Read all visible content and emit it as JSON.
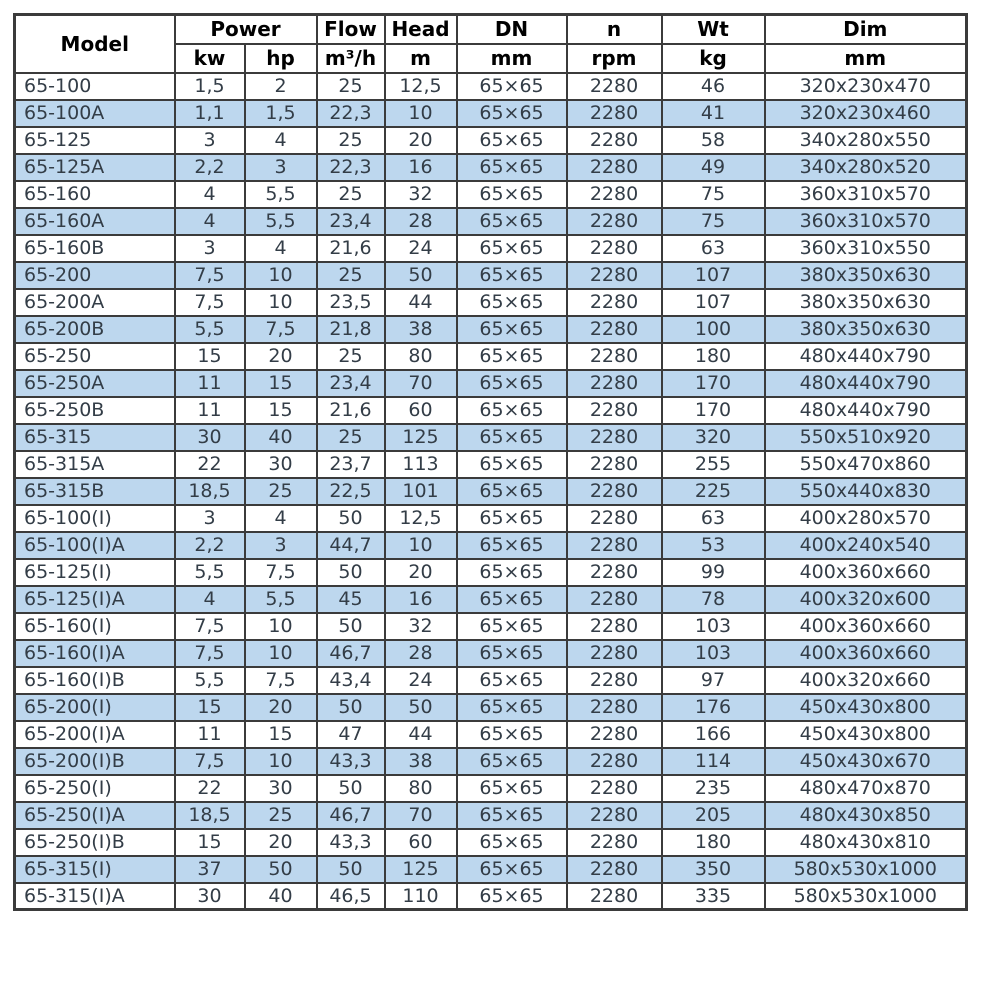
{
  "chart_data": {
    "type": "table",
    "header": {
      "model": "Model",
      "power": "Power",
      "kw": "kw",
      "hp": "hp",
      "flow": "Flow",
      "flow_unit": "m³/h",
      "head": "Head",
      "head_unit": "m",
      "dn": "DN",
      "dn_unit": "mm",
      "n": "n",
      "n_unit": "rpm",
      "wt": "Wt",
      "wt_unit": "kg",
      "dim": "Dim",
      "dim_unit": "mm"
    },
    "columns": [
      "Model",
      "Power (kw)",
      "Power (hp)",
      "Flow (m³/h)",
      "Head (m)",
      "DN (mm)",
      "n (rpm)",
      "Wt (kg)",
      "Dim (mm)"
    ],
    "rows": [
      [
        "65-100",
        "1,5",
        "2",
        "25",
        "12,5",
        "65×65",
        "2280",
        "46",
        "320x230x470"
      ],
      [
        "65-100A",
        "1,1",
        "1,5",
        "22,3",
        "10",
        "65×65",
        "2280",
        "41",
        "320x230x460"
      ],
      [
        "65-125",
        "3",
        "4",
        "25",
        "20",
        "65×65",
        "2280",
        "58",
        "340x280x550"
      ],
      [
        "65-125A",
        "2,2",
        "3",
        "22,3",
        "16",
        "65×65",
        "2280",
        "49",
        "340x280x520"
      ],
      [
        "65-160",
        "4",
        "5,5",
        "25",
        "32",
        "65×65",
        "2280",
        "75",
        "360x310x570"
      ],
      [
        "65-160A",
        "4",
        "5,5",
        "23,4",
        "28",
        "65×65",
        "2280",
        "75",
        "360x310x570"
      ],
      [
        "65-160B",
        "3",
        "4",
        "21,6",
        "24",
        "65×65",
        "2280",
        "63",
        "360x310x550"
      ],
      [
        "65-200",
        "7,5",
        "10",
        "25",
        "50",
        "65×65",
        "2280",
        "107",
        "380x350x630"
      ],
      [
        "65-200A",
        "7,5",
        "10",
        "23,5",
        "44",
        "65×65",
        "2280",
        "107",
        "380x350x630"
      ],
      [
        "65-200B",
        "5,5",
        "7,5",
        "21,8",
        "38",
        "65×65",
        "2280",
        "100",
        "380x350x630"
      ],
      [
        "65-250",
        "15",
        "20",
        "25",
        "80",
        "65×65",
        "2280",
        "180",
        "480x440x790"
      ],
      [
        "65-250A",
        "11",
        "15",
        "23,4",
        "70",
        "65×65",
        "2280",
        "170",
        "480x440x790"
      ],
      [
        "65-250B",
        "11",
        "15",
        "21,6",
        "60",
        "65×65",
        "2280",
        "170",
        "480x440x790"
      ],
      [
        "65-315",
        "30",
        "40",
        "25",
        "125",
        "65×65",
        "2280",
        "320",
        "550x510x920"
      ],
      [
        "65-315A",
        "22",
        "30",
        "23,7",
        "113",
        "65×65",
        "2280",
        "255",
        "550x470x860"
      ],
      [
        "65-315B",
        "18,5",
        "25",
        "22,5",
        "101",
        "65×65",
        "2280",
        "225",
        "550x440x830"
      ],
      [
        "65-100(I)",
        "3",
        "4",
        "50",
        "12,5",
        "65×65",
        "2280",
        "63",
        "400x280x570"
      ],
      [
        "65-100(I)A",
        "2,2",
        "3",
        "44,7",
        "10",
        "65×65",
        "2280",
        "53",
        "400x240x540"
      ],
      [
        "65-125(I)",
        "5,5",
        "7,5",
        "50",
        "20",
        "65×65",
        "2280",
        "99",
        "400x360x660"
      ],
      [
        "65-125(I)A",
        "4",
        "5,5",
        "45",
        "16",
        "65×65",
        "2280",
        "78",
        "400x320x600"
      ],
      [
        "65-160(I)",
        "7,5",
        "10",
        "50",
        "32",
        "65×65",
        "2280",
        "103",
        "400x360x660"
      ],
      [
        "65-160(I)A",
        "7,5",
        "10",
        "46,7",
        "28",
        "65×65",
        "2280",
        "103",
        "400x360x660"
      ],
      [
        "65-160(I)B",
        "5,5",
        "7,5",
        "43,4",
        "24",
        "65×65",
        "2280",
        "97",
        "400x320x660"
      ],
      [
        "65-200(I)",
        "15",
        "20",
        "50",
        "50",
        "65×65",
        "2280",
        "176",
        "450x430x800"
      ],
      [
        "65-200(I)A",
        "11",
        "15",
        "47",
        "44",
        "65×65",
        "2280",
        "166",
        "450x430x800"
      ],
      [
        "65-200(I)B",
        "7,5",
        "10",
        "43,3",
        "38",
        "65×65",
        "2280",
        "114",
        "450x430x670"
      ],
      [
        "65-250(I)",
        "22",
        "30",
        "50",
        "80",
        "65×65",
        "2280",
        "235",
        "480x470x870"
      ],
      [
        "65-250(I)A",
        "18,5",
        "25",
        "46,7",
        "70",
        "65×65",
        "2280",
        "205",
        "480x430x850"
      ],
      [
        "65-250(I)B",
        "15",
        "20",
        "43,3",
        "60",
        "65×65",
        "2280",
        "180",
        "480x430x810"
      ],
      [
        "65-315(I)",
        "37",
        "50",
        "50",
        "125",
        "65×65",
        "2280",
        "350",
        "580x530x1000"
      ],
      [
        "65-315(I)A",
        "30",
        "40",
        "46,5",
        "110",
        "65×65",
        "2280",
        "335",
        "580x530x1000"
      ]
    ],
    "layout": {
      "alternate_row_shading": "every second row light blue, starting from second data row",
      "grid": true
    }
  },
  "colors": {
    "row_alt": "#bdd7ee",
    "border": "#3b3b3b",
    "text": "#333d47",
    "header_text": "#000000",
    "background": "#ffffff"
  }
}
